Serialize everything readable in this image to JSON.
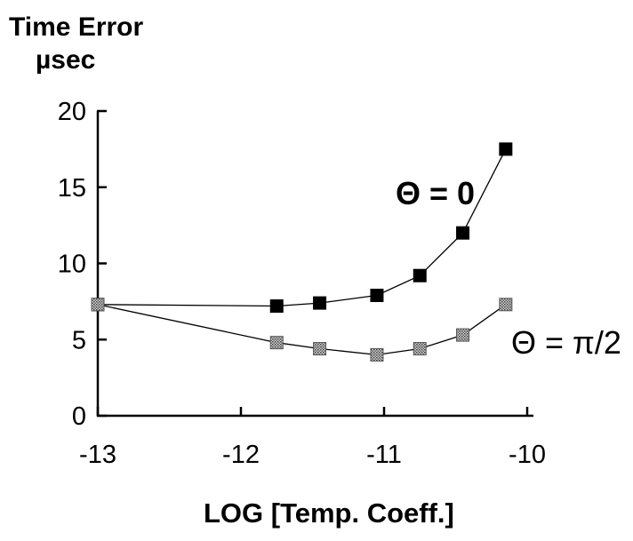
{
  "chart_data": {
    "type": "line",
    "ylabel_line1": "Time Error",
    "ylabel_line2": "µsec",
    "xlabel": "LOG [Temp. Coeff.]",
    "xlim": [
      -13,
      -10
    ],
    "ylim": [
      0,
      20
    ],
    "x_ticks": [
      -13,
      -12,
      -11,
      -10
    ],
    "x_tick_labels": [
      "-13",
      "-12",
      "-11",
      "-10"
    ],
    "y_ticks": [
      0,
      5,
      10,
      15,
      20
    ],
    "y_tick_labels": [
      "0",
      "5",
      "10",
      "15",
      "20"
    ],
    "grid": false,
    "series": [
      {
        "name": "Θ = 0",
        "marker": "filled-square",
        "color": "#000000",
        "x": [
          -13,
          -11.75,
          -11.45,
          -11.05,
          -10.75,
          -10.45,
          -10.15
        ],
        "y": [
          7.3,
          7.2,
          7.4,
          7.9,
          9.2,
          12,
          17.5
        ]
      },
      {
        "name": "Θ = π/2",
        "marker": "dotted-square",
        "color": "#9a9a9a",
        "x": [
          -13,
          -11.75,
          -11.45,
          -11.05,
          -10.75,
          -10.45,
          -10.15
        ],
        "y": [
          7.3,
          4.8,
          4.4,
          4.0,
          4.4,
          5.3,
          7.3
        ]
      }
    ]
  }
}
